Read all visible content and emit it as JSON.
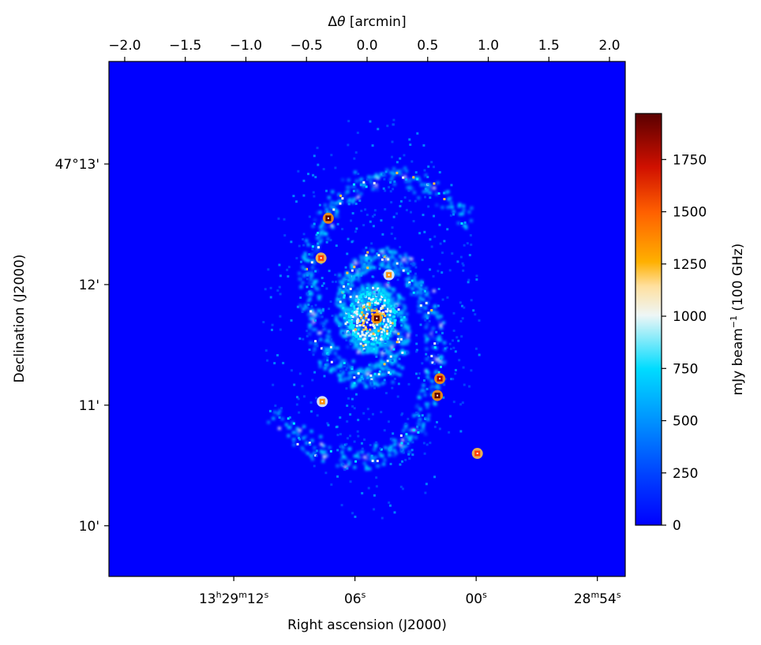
{
  "chart_data": {
    "type": "heatmap",
    "top_axis": {
      "label_prefix": "Δ",
      "label_symbol": "θ",
      "label_suffix": " [arcmin]",
      "ticks": [
        -2.0,
        -1.5,
        -1.0,
        -0.5,
        0.0,
        0.5,
        1.0,
        1.5,
        2.0
      ],
      "tick_labels": [
        "−2.0",
        "−1.5",
        "−1.0",
        "−0.5",
        "0.0",
        "0.5",
        "1.0",
        "1.5",
        "2.0"
      ],
      "range": [
        -2.13,
        2.13
      ]
    },
    "xaxis": {
      "label": "Right ascension (J2000)",
      "ticks": [
        {
          "parts": [
            "13",
            "h",
            "29",
            "m",
            "12",
            "s"
          ]
        },
        {
          "parts": [
            "06",
            "s"
          ]
        },
        {
          "parts": [
            "00",
            "s"
          ]
        },
        {
          "parts": [
            "28",
            "m",
            "54",
            "s"
          ]
        }
      ]
    },
    "yaxis": {
      "label": "Declination (J2000)",
      "range_arcmin": [
        9.58,
        13.85
      ],
      "ticks": [
        {
          "value": 13,
          "label": "47°13'"
        },
        {
          "value": 12,
          "label": "12'"
        },
        {
          "value": 11,
          "label": "11'"
        },
        {
          "value": 10,
          "label": "10'"
        }
      ]
    },
    "colorbar": {
      "label_prefix": "mJy beam",
      "label_sup": "−1",
      "label_suffix": " (100 GHz)",
      "range": [
        0,
        1970
      ],
      "ticks": [
        0,
        250,
        500,
        750,
        1000,
        1250,
        1500,
        1750
      ],
      "tick_labels": [
        "0",
        "250",
        "500",
        "750",
        "1000",
        "1250",
        "1500",
        "1750"
      ],
      "colormap": [
        "#0000ff",
        "#0050ff",
        "#00a0ff",
        "#00e6ff",
        "#e6f3f6",
        "#ffc040",
        "#ff9000",
        "#ff4000",
        "#b00000",
        "#5a0000"
      ]
    },
    "image_description_values": {
      "background_value": 0,
      "bright_peaks": [
        {
          "x": 0.08,
          "y": 11.72,
          "value": 1950
        },
        {
          "x": -0.32,
          "y": 12.55,
          "value": 1950
        },
        {
          "x": 0.58,
          "y": 11.08,
          "value": 1950
        },
        {
          "x": 0.6,
          "y": 11.22,
          "value": 1800
        },
        {
          "x": 0.91,
          "y": 10.6,
          "value": 1500
        },
        {
          "x": -0.38,
          "y": 12.22,
          "value": 1600
        },
        {
          "x": -0.37,
          "y": 11.03,
          "value": 1400
        },
        {
          "x": 0.18,
          "y": 12.08,
          "value": 1400
        }
      ]
    }
  }
}
